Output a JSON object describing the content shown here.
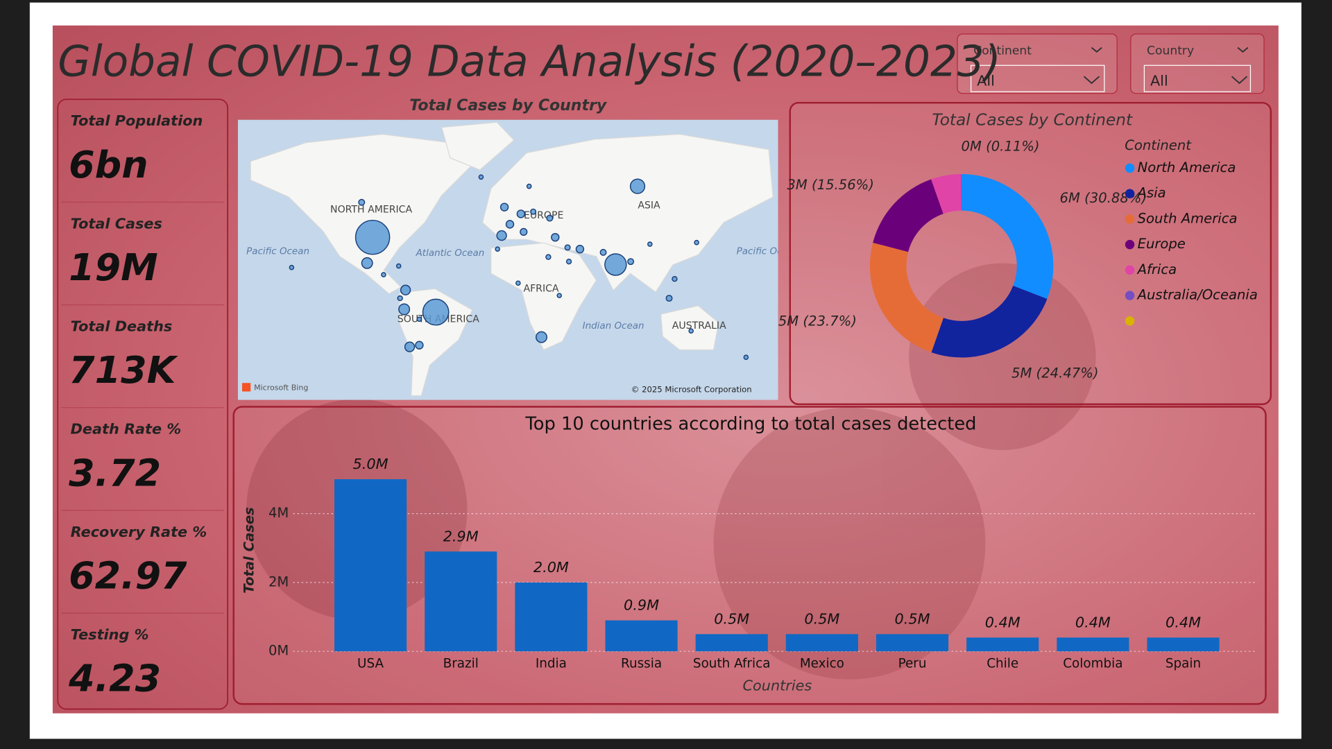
{
  "header": {
    "title": "Global COVID-19 Data Analysis (2020–2023)"
  },
  "filters": [
    {
      "label": "Continent",
      "value": "All"
    },
    {
      "label": "Country",
      "value": "All"
    }
  ],
  "kpis": [
    {
      "label": "Total Population",
      "value": "6bn"
    },
    {
      "label": "Total Cases",
      "value": "19M"
    },
    {
      "label": "Total Deaths",
      "value": "713K"
    },
    {
      "label": "Death Rate %",
      "value": "3.72"
    },
    {
      "label": "Recovery Rate %",
      "value": "62.97"
    },
    {
      "label": "Testing %",
      "value": "4.23"
    }
  ],
  "chart_data": [
    {
      "type": "map",
      "title": "Total Cases by Country",
      "color": "#5b9bd5",
      "labels": [
        "NORTH AMERICA",
        "ASIA",
        "EUROPE",
        "AFRICA",
        "SOUTH AMERICA",
        "AUSTRALIA",
        "Pacific Ocean",
        "Atlantic Ocean",
        "Pacific Ocean",
        "Indian Ocean"
      ],
      "attribution": [
        "Microsoft Bing",
        "© 2025 Microsoft Corporation"
      ],
      "x": [
        -98,
        -52,
        79,
        95,
        -102,
        -75,
        -71,
        -74,
        -4,
        25,
        -64,
        -2,
        2,
        10,
        12,
        35,
        53,
        118,
        122,
        70,
        45,
        -106,
        31,
        19,
        138,
        104,
        134,
        30,
        8,
        38,
        90,
        -78,
        -64,
        -79,
        -90,
        44,
        -7,
        174,
        -19,
        16,
        -157
      ],
      "y": [
        39,
        -12,
        22,
        62,
        23,
        -10,
        -35,
        4,
        40,
        -29,
        -34,
        54,
        46,
        51,
        42,
        39,
        32,
        -2,
        12,
        30,
        24,
        56,
        49,
        52,
        36,
        35,
        -25,
        27,
        9,
        0,
        24,
        -2,
        -17,
        21,
        15,
        33,
        32,
        -41,
        65,
        62,
        20
      ],
      "values": [
        5000000,
        2900000,
        2000000,
        900000,
        500000,
        500000,
        400000,
        400000,
        400000,
        500000,
        250000,
        250000,
        250000,
        250000,
        200000,
        250000,
        250000,
        150000,
        100000,
        150000,
        100000,
        150000,
        150000,
        120000,
        50000,
        40000,
        30000,
        100000,
        50000,
        50000,
        150000,
        100000,
        80000,
        50000,
        60000,
        120000,
        60000,
        5000,
        5000,
        80000,
        5000
      ]
    },
    {
      "type": "donut",
      "title": "Total Cases by Continent",
      "legend_title": "Continent",
      "categories": [
        "North America",
        "Asia",
        "South America",
        "Europe",
        "Africa",
        "Australia/Oceania",
        null
      ],
      "values": [
        30.88,
        24.47,
        23.7,
        15.56,
        5.28,
        0.11,
        0
      ],
      "value_labels": [
        "6M (30.88%)",
        "5M (24.47%)",
        "5M (23.7%)",
        "3M (15.56%)",
        null,
        "0M (0.11%)",
        null
      ],
      "colors": [
        "#118dff",
        "#12239e",
        "#e66c37",
        "#6b007b",
        "#e044a7",
        "#744ec2",
        "#d9b300"
      ]
    },
    {
      "type": "bar",
      "title": "Top 10 countries according to total cases detected",
      "x_label": "Countries",
      "y_label": "Total Cases",
      "categories": [
        "USA",
        "Brazil",
        "India",
        "Russia",
        "South Africa",
        "Mexico",
        "Peru",
        "Chile",
        "Colombia",
        "Spain"
      ],
      "values": [
        5000000,
        2900000,
        2000000,
        900000,
        500000,
        500000,
        500000,
        400000,
        400000,
        400000
      ],
      "value_labels": [
        "5.0M",
        "2.9M",
        "2.0M",
        "0.9M",
        "0.5M",
        "0.5M",
        "0.5M",
        "0.4M",
        "0.4M",
        "0.4M"
      ],
      "color": "#1068c4",
      "ylim": [
        0,
        5600000
      ],
      "yticks": [
        {
          "value": 0,
          "label": "0M"
        },
        {
          "value": 2000000,
          "label": "2M"
        },
        {
          "value": 4000000,
          "label": "4M"
        }
      ],
      "grid": true
    }
  ]
}
